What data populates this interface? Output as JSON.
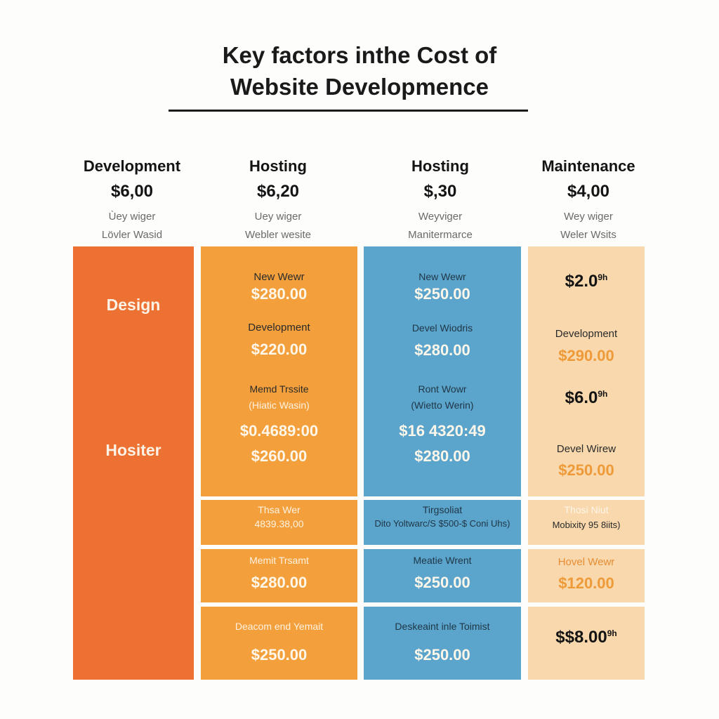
{
  "title": {
    "line1": "Key factors inthe Cost of",
    "line2": "Website Developmence"
  },
  "columns": [
    {
      "name": "Development",
      "price": "$6,00",
      "sub1": "Ùey wiger",
      "sub2": "Lövler Wasid"
    },
    {
      "name": "Hosting",
      "price": "$6,20",
      "sub1": "Uey wiger",
      "sub2": "Webler wesite"
    },
    {
      "name": "Hosting",
      "price": "$,30",
      "sub1": "Weyviger",
      "sub2": "Manitermarce"
    },
    {
      "name": "Maintenance",
      "price": "$4,00",
      "sub1": "Wey wiger",
      "sub2": "Weler Wsits"
    }
  ],
  "col1": {
    "label_top": "Design",
    "label_bottom": "Hositer"
  },
  "col2": {
    "main": {
      "a_label": "New Wewr",
      "a_amount": "$280.00",
      "b_label": "Development",
      "b_amount": "$220.00",
      "c_label": "Memd Trssite",
      "c_sub": "(Hiatic Wasin)",
      "c_amount": "$0.4689:00",
      "d_amount": "$260.00"
    },
    "row1": {
      "label": "Thsa Wer",
      "value": "4839.38,00"
    },
    "row2": {
      "label": "Memit Trsamt",
      "amount": "$280.00"
    },
    "row3": {
      "label": "Deacom end Yemait",
      "amount": "$250.00"
    }
  },
  "col3": {
    "main": {
      "a_label": "New Wewr",
      "a_amount": "$250.00",
      "b_label": "Devel Wiodris",
      "b_amount": "$280.00",
      "c_label": "Ront Wowr",
      "c_sub": "(Wietto Werin)",
      "c_amount": "$16 4320:49",
      "d_amount": "$280.00"
    },
    "row1": {
      "label": "Tirgsoliat",
      "value": "Dito Yoltwarc/S $500-$ Coni Uhs)"
    },
    "row2": {
      "label": "Meatie Wrent",
      "amount": "$250.00"
    },
    "row3": {
      "label": "Deskeaint inle Toimist",
      "amount": "$250.00"
    }
  },
  "col4": {
    "main": {
      "a_amount": "$2.0",
      "a_sup": "9h",
      "b_label": "Development",
      "b_amount": "$290.00",
      "c_amount": "$6.0",
      "c_sup": "9h",
      "d_label": "Devel Wirew",
      "d_amount": "$250.00"
    },
    "row1": {
      "label": "Thosi Niut",
      "value": "Mobixity 95 8iits)"
    },
    "row2": {
      "label": "Hovel Wewr",
      "amount": "$120.00"
    },
    "row3": {
      "amount": "$$8.00",
      "sup": "9h"
    }
  },
  "colors": {
    "orange_dark": "#ec7132",
    "orange": "#f3a03c",
    "blue": "#5ba4cb",
    "peach": "#f8d8ac"
  }
}
